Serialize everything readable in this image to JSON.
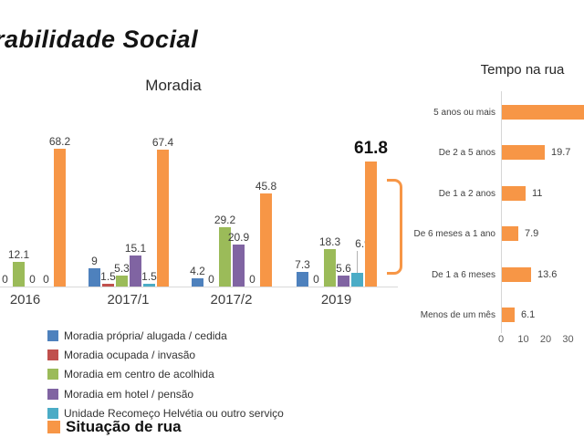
{
  "titles": {
    "main": "rabilidade Social"
  },
  "colors": {
    "blue": "#4E81BD",
    "red": "#C0504D",
    "green": "#9BBB59",
    "purple": "#8064A2",
    "teal": "#4BACC6",
    "orange": "#F79646",
    "axis": "#d9d9d9",
    "value_label": "#3d3d3d",
    "tick": "#595959"
  },
  "chart_data": [
    {
      "type": "bar",
      "title": "Moradia",
      "categories": [
        "2016",
        "2017/1",
        "2017/2",
        "2019"
      ],
      "series": [
        {
          "name": "Moradia própria/ alugada / cedida",
          "color": "#4E81BD",
          "values": [
            null,
            9,
            4.2,
            7.3
          ],
          "note": "2016 value cut off at left edge of image"
        },
        {
          "name": "Moradia ocupada / invasão",
          "color": "#C0504D",
          "values": [
            0,
            1.5,
            0,
            0
          ]
        },
        {
          "name": "Moradia em centro de acolhida",
          "color": "#9BBB59",
          "values": [
            12.1,
            5.3,
            29.2,
            18.3
          ]
        },
        {
          "name": "Moradia em hotel / pensão",
          "color": "#8064A2",
          "values": [
            0,
            15.1,
            20.9,
            5.6
          ]
        },
        {
          "name": "Unidade Recomeço Helvétia ou outro serviço",
          "color": "#4BACC6",
          "values": [
            0,
            1.5,
            0,
            6.9
          ]
        },
        {
          "name": "Situação de rua",
          "color": "#F79646",
          "values": [
            68.2,
            67.4,
            45.8,
            61.8
          ],
          "emphasis": true,
          "emphasized_value_category": "2019"
        }
      ],
      "ylim": [
        0,
        80
      ],
      "grid": false,
      "legend_position": "bottom-left",
      "notes": "first category group partially cut off at left image edge; 61.8 label enlarged and bracketed toward right chart"
    },
    {
      "type": "bar",
      "orientation": "horizontal",
      "title": "Tempo na rua",
      "categories": [
        "5 anos ou mais",
        "De 2 a 5 anos",
        "De 1 a 2 anos",
        "De 6 meses a 1 ano",
        "De 1 a 6 meses",
        "Menos de um mês"
      ],
      "values": [
        null,
        19.7,
        11,
        7.9,
        13.6,
        6.1
      ],
      "xticks": [
        0,
        10,
        20,
        30
      ],
      "xlim": [
        0,
        37
      ],
      "color": "#F79646",
      "grid": false,
      "notes": "top bar ('5 anos ou mais') extends past the right edge of the image; its value label is not visible"
    }
  ]
}
